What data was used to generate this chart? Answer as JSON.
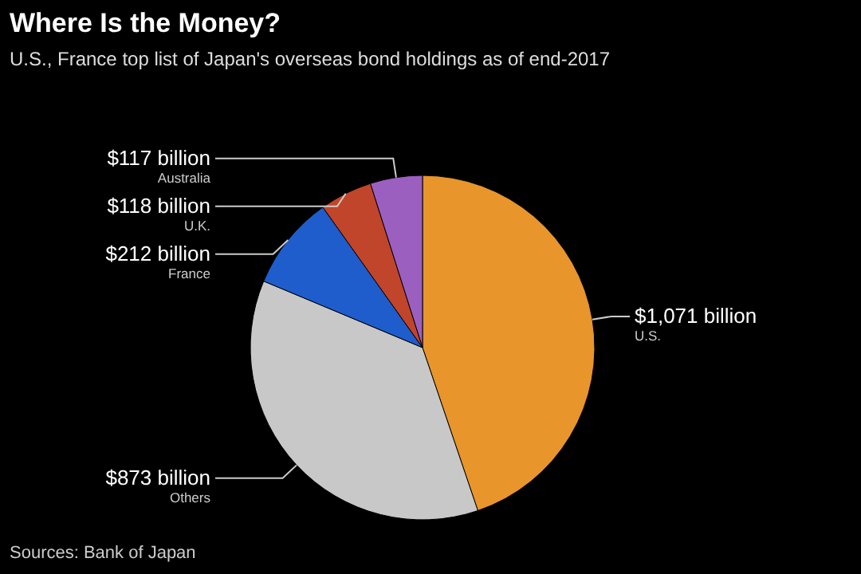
{
  "chart_data": {
    "type": "pie",
    "title": "Where Is the Money?",
    "subtitle": "U.S., France top list of Japan's overseas bond holdings as of end-2017",
    "categories": [
      "U.S.",
      "Others",
      "France",
      "U.K.",
      "Australia"
    ],
    "values": [
      1071,
      873,
      212,
      118,
      117
    ],
    "value_labels": [
      "$1,071 billion",
      "$873 billion",
      "$212 billion",
      "$118 billion",
      "$117 billion"
    ],
    "colors": [
      "#e8952b",
      "#c8c8c8",
      "#1f5ccc",
      "#c0452a",
      "#9b5fc0"
    ],
    "annotations": [
      "Sources: Bank of Japan"
    ]
  }
}
